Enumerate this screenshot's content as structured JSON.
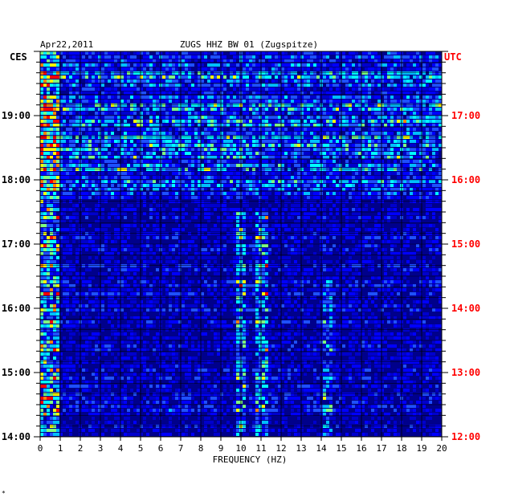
{
  "header": {
    "date": "Apr22,2011",
    "title": "ZUGS HHZ BW 01 (Zugspitze)",
    "left_zone": "CES",
    "right_zone": "UTC"
  },
  "footer": {
    "mark": "*"
  },
  "colors": {
    "utc": "#ff0000",
    "text": "#000000",
    "background_low": "#00008b",
    "palette": [
      "#00008b",
      "#0000cd",
      "#0000ff",
      "#1e50ff",
      "#00bfff",
      "#00ffff",
      "#7fff7f",
      "#ffff00",
      "#ff8000",
      "#ff0000"
    ]
  },
  "chart_data": {
    "type": "heatmap",
    "title": "ZUGS HHZ BW 01 (Zugspitze)",
    "xlabel": "FREQUENCY (HZ)",
    "xlim": [
      0,
      20
    ],
    "x_ticks": [
      "0",
      "1",
      "2",
      "3",
      "4",
      "5",
      "6",
      "7",
      "8",
      "9",
      "10",
      "11",
      "12",
      "13",
      "14",
      "15",
      "16",
      "17",
      "18",
      "19",
      "20"
    ],
    "left_axis_label": "CES",
    "right_axis_label": "UTC",
    "left_ticks": [
      "19:00",
      "18:00",
      "17:00",
      "16:00",
      "15:00",
      "14:00"
    ],
    "right_ticks": [
      "17:00",
      "16:00",
      "15:00",
      "14:00",
      "13:00",
      "12:00"
    ],
    "time_range_utc": [
      "12:00",
      "18:00"
    ],
    "grid": true,
    "features": [
      {
        "name": "low-frequency energy",
        "freq_range_hz": [
          0,
          1
        ],
        "intensity": "high"
      },
      {
        "name": "line near 10 Hz",
        "freq_range_hz": [
          9.8,
          10.3
        ],
        "time_range_utc": [
          "12:00",
          "15:30"
        ],
        "intensity": "medium-high"
      },
      {
        "name": "line near 11 Hz",
        "freq_range_hz": [
          10.8,
          11.4
        ],
        "time_range_utc": [
          "12:00",
          "15:30"
        ],
        "intensity": "medium-high"
      },
      {
        "name": "line near 14.3 Hz",
        "freq_range_hz": [
          14.1,
          14.5
        ],
        "time_range_utc": [
          "12:00",
          "14:30"
        ],
        "intensity": "medium"
      },
      {
        "name": "broadband noise",
        "freq_range_hz": [
          0,
          20
        ],
        "time_range_utc": [
          "15:40",
          "18:00"
        ],
        "intensity": "medium"
      }
    ]
  }
}
